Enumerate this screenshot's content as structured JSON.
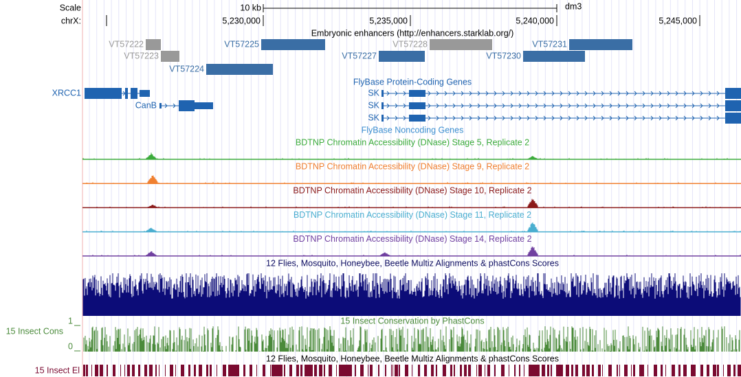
{
  "ruler": {
    "scale": "Scale",
    "scale_bar": "10 kb",
    "assembly": "dm3",
    "chrom": "chrX:",
    "positions": [
      "5,230,000",
      "5,235,000",
      "5,240,000",
      "5,245,000"
    ]
  },
  "enhancers": {
    "title": "Embryonic enhancers (http://enhancers.starklab.org/)",
    "items": [
      "VT57222",
      "VT57223",
      "VT57224",
      "VT57225",
      "VT57227",
      "VT57228",
      "VT57230",
      "VT57231"
    ]
  },
  "protein_genes": {
    "title": "FlyBase Protein-Coding Genes",
    "items": [
      "XRCC1",
      "CanB",
      "SK",
      "SK",
      "SK"
    ]
  },
  "noncoding_genes": {
    "title": "FlyBase Noncoding Genes"
  },
  "dnase": [
    "BDTNP Chromatin Accessibility (DNase) Stage 5, Replicate 2",
    "BDTNP Chromatin Accessibility (DNase) Stage 9, Replicate 2",
    "BDTNP Chromatin Accessibility (DNase) Stage 10, Replicate 2",
    "BDTNP Chromatin Accessibility (DNase) Stage 11, Replicate 2",
    "BDTNP Chromatin Accessibility (DNase) Stage 14, Replicate 2"
  ],
  "multiz": {
    "title": "12 Flies, Mosquito, Honeybee, Beetle Multiz Alignments & phastCons Scores"
  },
  "phastcons": {
    "title": "15 Insect Conservation by PhastCons",
    "side_label": "15 Insect Cons",
    "max_label": "1",
    "min_label": "0"
  },
  "elements": {
    "title": "12 Flies, Mosquito, Honeybee, Beetle Multiz Alignments & phastCons Scores",
    "side_label": "15 Insect El"
  }
}
